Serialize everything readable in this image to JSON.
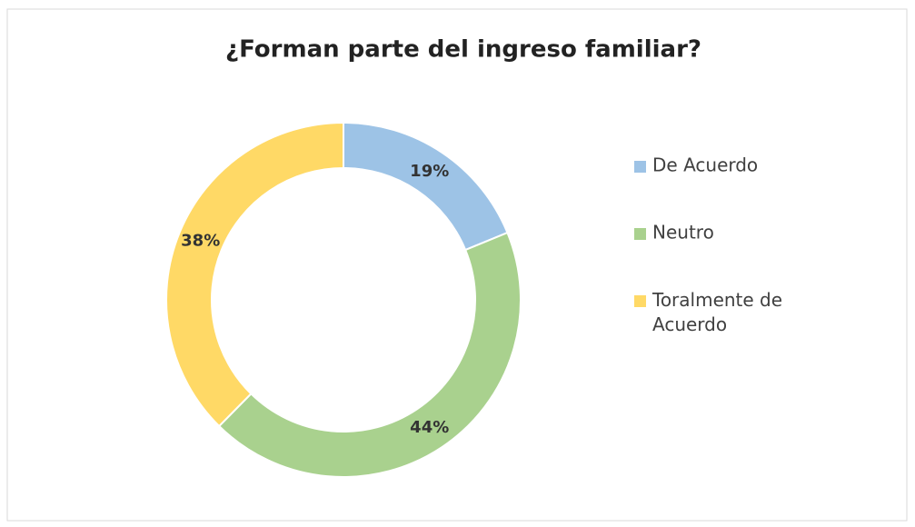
{
  "chart_data": {
    "type": "donut",
    "title": "¿Forman parte del ingreso familiar?",
    "categories": [
      "De Acuerdo",
      "Neutro",
      "Toralmente de Acuerdo"
    ],
    "values": [
      19,
      44,
      38
    ],
    "value_labels": [
      "19%",
      "44%",
      "38%"
    ],
    "colors": [
      "#9dc3e6",
      "#a9d18e",
      "#ffd966"
    ],
    "legend": "right"
  }
}
